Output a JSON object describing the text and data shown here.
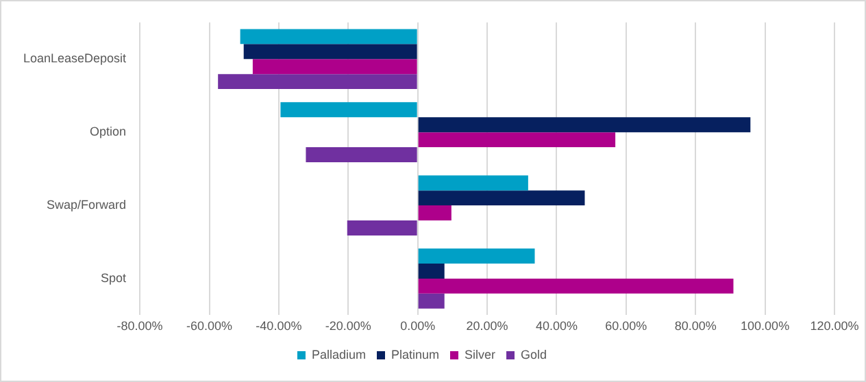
{
  "chart_data": {
    "type": "bar",
    "orientation": "horizontal",
    "categories": [
      "LoanLeaseDeposit",
      "Option",
      "Swap/Forward",
      "Spot"
    ],
    "series": [
      {
        "name": "Palladium",
        "color": "#00a0c6",
        "values": [
          -51.1,
          -39.5,
          31.8,
          33.7
        ]
      },
      {
        "name": "Platinum",
        "color": "#06205f",
        "values": [
          -50.1,
          95.8,
          48.1,
          7.7
        ]
      },
      {
        "name": "Silver",
        "color": "#ae008b",
        "values": [
          -47.5,
          56.9,
          9.7,
          90.9
        ]
      },
      {
        "name": "Gold",
        "color": "#7030a0",
        "values": [
          -57.5,
          -32.2,
          -20.3,
          7.7
        ]
      }
    ],
    "xlim": [
      -80,
      120
    ],
    "xticks": [
      {
        "value": -80,
        "label": "-80.00%"
      },
      {
        "value": -60,
        "label": "-60.00%"
      },
      {
        "value": -40,
        "label": "-40.00%"
      },
      {
        "value": -20,
        "label": "-20.00%"
      },
      {
        "value": 0,
        "label": "0.00%"
      },
      {
        "value": 20,
        "label": "20.00%"
      },
      {
        "value": 40,
        "label": "40.00%"
      },
      {
        "value": 60,
        "label": "60.00%"
      },
      {
        "value": 80,
        "label": "80.00%"
      },
      {
        "value": 100,
        "label": "100.00%"
      },
      {
        "value": 120,
        "label": "120.00%"
      }
    ],
    "grid": "x",
    "legend": "bottom"
  }
}
